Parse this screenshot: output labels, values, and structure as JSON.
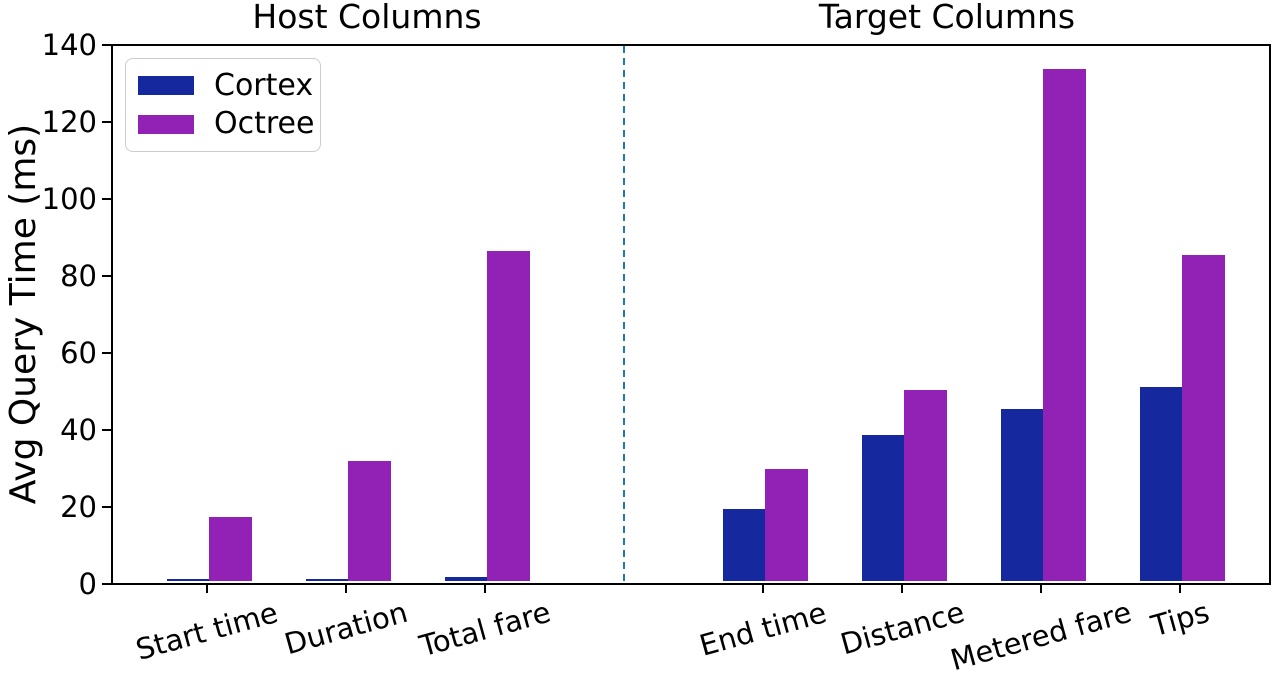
{
  "chart_data": {
    "type": "bar",
    "ylabel": "Avg Query Time (ms)",
    "xlabel": "",
    "ylim": [
      0,
      140
    ],
    "yticks": [
      0,
      20,
      40,
      60,
      80,
      100,
      120,
      140
    ],
    "grid": false,
    "legend": {
      "position": "upper left",
      "entries": [
        "Cortex",
        "Octree"
      ]
    },
    "series": [
      {
        "name": "Cortex",
        "color": "#15289e"
      },
      {
        "name": "Octree",
        "color": "#9221b5"
      }
    ],
    "panels": [
      {
        "title": "Host Columns",
        "categories": [
          "Start time",
          "Duration",
          "Total fare"
        ],
        "values": {
          "Cortex": [
            0.4,
            0.6,
            1.1
          ],
          "Octree": [
            16.6,
            31.3,
            85.7
          ]
        }
      },
      {
        "title": "Target Columns",
        "categories": [
          "End time",
          "Distance",
          "Metered fare",
          "Tips"
        ],
        "values": {
          "Cortex": [
            18.7,
            37.8,
            44.6,
            50.5
          ],
          "Octree": [
            29.2,
            49.6,
            133.1,
            84.6
          ]
        }
      }
    ],
    "divider": {
      "style": "dashed",
      "color": "#1f77b4"
    }
  }
}
